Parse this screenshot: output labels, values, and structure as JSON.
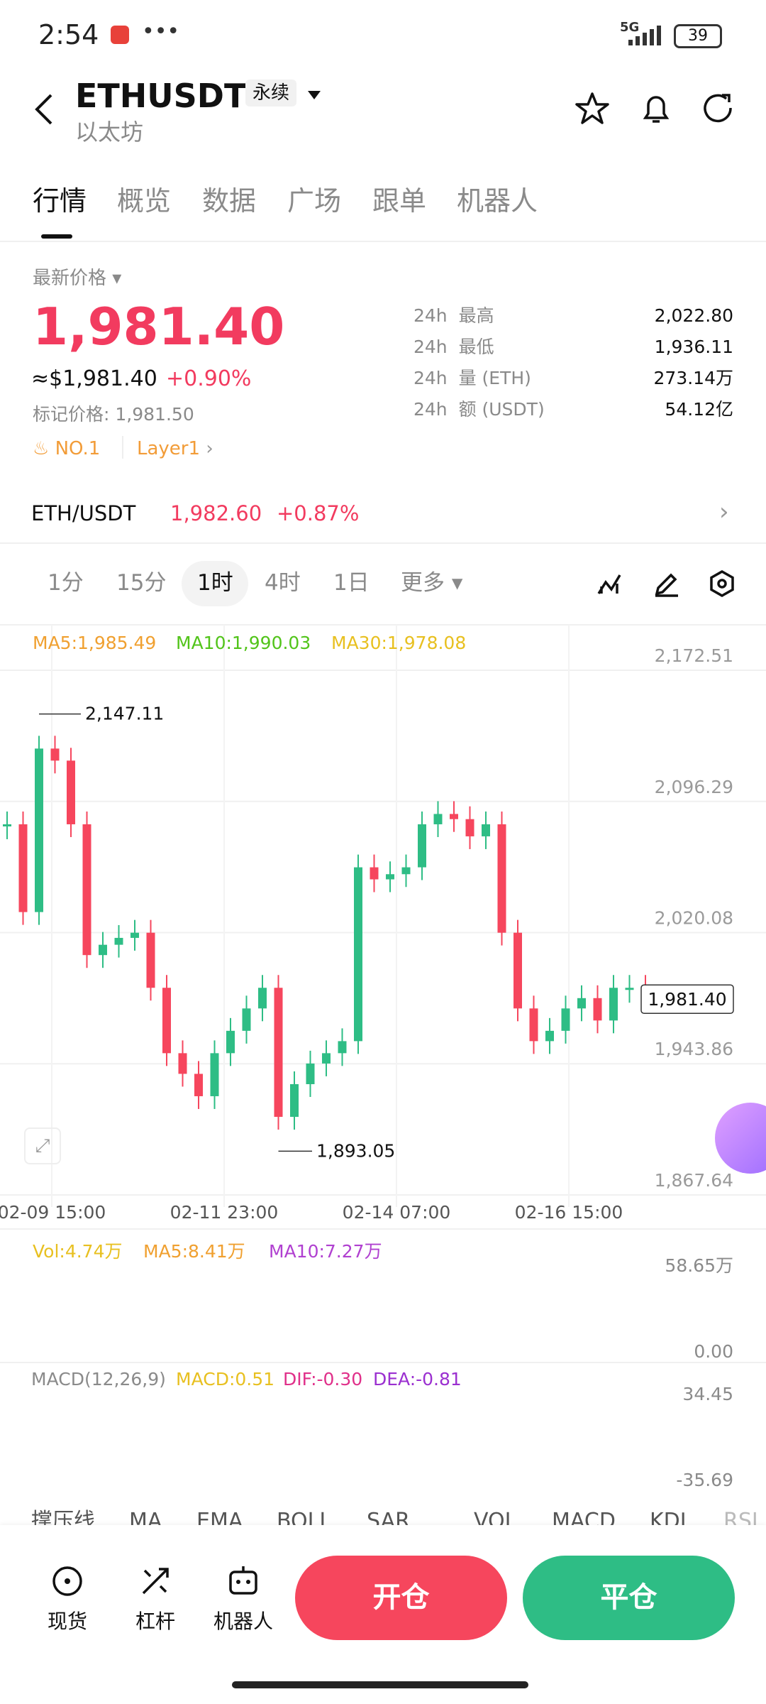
{
  "status": {
    "time": "2:54",
    "network": "5G",
    "battery": "39"
  },
  "header": {
    "symbol": "ETHUSDT",
    "badge": "永续",
    "name": "以太坊"
  },
  "tabs": [
    "行情",
    "概览",
    "数据",
    "广场",
    "跟单",
    "机器人"
  ],
  "price": {
    "label": "最新价格",
    "last": "1,981.40",
    "approx": "≈$1,981.40",
    "change": "+0.90%",
    "mark_label": "标记价格:",
    "mark": "1,981.50",
    "rank": "NO.1",
    "sector": "Layer1"
  },
  "stats": [
    {
      "period": "24h",
      "label": "最高",
      "value": "2,022.80"
    },
    {
      "period": "24h",
      "label": "最低",
      "value": "1,936.11"
    },
    {
      "period": "24h",
      "label": "量 (ETH)",
      "value": "273.14万"
    },
    {
      "period": "24h",
      "label": "额 (USDT)",
      "value": "54.12亿"
    }
  ],
  "spot": {
    "pair": "ETH/USDT",
    "price": "1,982.60",
    "change": "+0.87%"
  },
  "intervals": [
    "1分",
    "15分",
    "1时",
    "4时",
    "1日",
    "更多"
  ],
  "chart_data": {
    "type": "candlestick",
    "ma_legend": [
      "MA5:1,985.49",
      "MA10:1,990.03",
      "MA30:1,978.08"
    ],
    "values": [
      2083,
      2032,
      2127,
      2120,
      2083,
      2007,
      2013,
      2017,
      2020,
      1988,
      1950,
      1938,
      1925,
      1950,
      1963,
      1976,
      1988,
      1913,
      1932,
      1944,
      1950,
      1957,
      2058,
      2051,
      2054,
      2058,
      2083,
      2089,
      2086,
      2076,
      2083,
      2020,
      1976,
      1957,
      1963,
      1976,
      1982,
      1969,
      1988,
      1988,
      1981.4
    ],
    "ylim": [
      1867.64,
      2172.51
    ],
    "yticks": [
      {
        "value": 1867.64,
        "label": "1,867.64"
      },
      {
        "value": 1943.86,
        "label": "1,943.86"
      },
      {
        "value": 2020.08,
        "label": "2,020.08"
      },
      {
        "value": 2096.29,
        "label": "2,096.29"
      },
      {
        "value": 2172.51,
        "label": "2,172.51"
      }
    ],
    "x_labels": [
      "02-09 15:00",
      "02-11 23:00",
      "02-14 07:00",
      "02-16 15:00"
    ],
    "high": {
      "value": 2147.11,
      "label": "2,147.11"
    },
    "low": {
      "value": 1893.05,
      "label": "1,893.05"
    },
    "last": {
      "value": 1981.4,
      "label": "1,981.40"
    }
  },
  "volume": {
    "legend": [
      "Vol:4.74万",
      "MA5:8.41万",
      "MA10:7.27万"
    ],
    "top": "58.65万",
    "bottom": "0.00"
  },
  "macd": {
    "legend": [
      "MACD(12,26,9)",
      "MACD:0.51",
      "DIF:-0.30",
      "DEA:-0.81"
    ],
    "top": "34.45",
    "bottom": "-35.69"
  },
  "indicators": [
    "撑压线",
    "MA",
    "EMA",
    "BOLL",
    "SAR",
    "VOL",
    "MACD",
    "KDJ",
    "RSI"
  ],
  "bottom": {
    "items": [
      "现货",
      "杠杆",
      "机器人"
    ],
    "open": "开仓",
    "close": "平仓"
  }
}
